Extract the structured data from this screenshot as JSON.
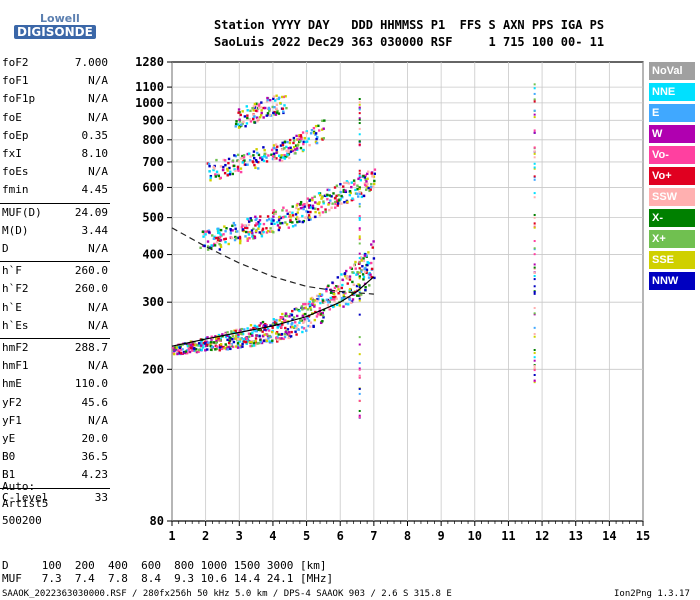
{
  "logo": {
    "top": "Lowell",
    "bottom": "DIGISONDE"
  },
  "header": {
    "line1": "Station YYYY DAY   DDD HHMMSS P1  FFS S AXN PPS IGA PS",
    "line2": "SaoLuis 2022 Dec29 363 030000 RSF     1 715 100 00- 11"
  },
  "params": [
    {
      "name": "foF2",
      "value": "7.000"
    },
    {
      "name": "foF1",
      "value": "N/A"
    },
    {
      "name": "foF1p",
      "value": "N/A"
    },
    {
      "name": "foE",
      "value": "N/A"
    },
    {
      "name": "foEp",
      "value": "0.35"
    },
    {
      "name": "fxI",
      "value": "8.10"
    },
    {
      "name": "foEs",
      "value": "N/A"
    },
    {
      "name": "fmin",
      "value": "4.45"
    },
    {
      "name": "MUF(D)",
      "value": "24.09"
    },
    {
      "name": "M(D)",
      "value": "3.44"
    },
    {
      "name": "D",
      "value": "N/A"
    },
    {
      "name": "h`F",
      "value": "260.0"
    },
    {
      "name": "h`F2",
      "value": "260.0"
    },
    {
      "name": "h`E",
      "value": "N/A"
    },
    {
      "name": "h`Es",
      "value": "N/A"
    },
    {
      "name": "hmF2",
      "value": "288.7"
    },
    {
      "name": "hmF1",
      "value": "N/A"
    },
    {
      "name": "hmE",
      "value": "110.0"
    },
    {
      "name": "yF2",
      "value": "45.6"
    },
    {
      "name": "yF1",
      "value": "N/A"
    },
    {
      "name": "yE",
      "value": "20.0"
    },
    {
      "name": "B0",
      "value": "36.5"
    },
    {
      "name": "B1",
      "value": "4.23"
    },
    {
      "name": "C-level",
      "value": "33"
    }
  ],
  "auto": [
    "Auto:",
    "Artist5",
    "500200"
  ],
  "legend": [
    {
      "label": "NoVal",
      "color": "#a0a0a0"
    },
    {
      "label": "NNE",
      "color": "#00e0ff"
    },
    {
      "label": "E",
      "color": "#40a8ff"
    },
    {
      "label": "W",
      "color": "#b000b0"
    },
    {
      "label": "Vo-",
      "color": "#ff40a0"
    },
    {
      "label": "Vo+",
      "color": "#e00020"
    },
    {
      "label": "SSW",
      "color": "#ffb0b0"
    },
    {
      "label": "X-",
      "color": "#008000"
    },
    {
      "label": "X+",
      "color": "#70c050"
    },
    {
      "label": "SSE",
      "color": "#d0d000"
    },
    {
      "label": "NNW",
      "color": "#0000c0"
    }
  ],
  "bottom": {
    "d_row": "D     100  200  400  600  800 1000 1500 3000 [km]",
    "muf_row": "MUF   7.3  7.4  7.8  8.4  9.3 10.6 14.4 24.1 [MHz]"
  },
  "footer": {
    "left": "SAAOK_2022363030000.RSF / 280fx256h 50 kHz 5.0 km / DPS-4 SAAOK 903 / 2.6 S 315.8 E",
    "right": "Ion2Png 1.3.17"
  },
  "chart_data": {
    "type": "scatter",
    "title": "",
    "xlabel": "",
    "ylabel": "",
    "xlim": [
      1,
      15
    ],
    "ylim": [
      80,
      1280
    ],
    "x_ticks": [
      1,
      2,
      3,
      4,
      5,
      6,
      7,
      8,
      9,
      10,
      11,
      12,
      13,
      14,
      15
    ],
    "y_ticks": [
      80,
      200,
      300,
      400,
      500,
      600,
      700,
      800,
      900,
      1000,
      1100,
      1280
    ],
    "y_scale": "log",
    "grid": true,
    "series": [
      {
        "trace": "F-trace echo",
        "x": [
          1.0,
          1.5,
          2.0,
          2.5,
          3.0,
          3.5,
          4.0,
          4.5,
          5.0,
          5.5,
          6.0,
          6.5,
          7.0
        ],
        "y": [
          225,
          228,
          232,
          236,
          240,
          246,
          252,
          260,
          272,
          290,
          315,
          340,
          380
        ]
      },
      {
        "trace": "2nd hop echo",
        "x": [
          1.8,
          2.5,
          3.0,
          3.5,
          4.0,
          4.5,
          5.0,
          5.5,
          6.0,
          6.5,
          7.0
        ],
        "y": [
          430,
          440,
          455,
          470,
          485,
          500,
          520,
          545,
          570,
          595,
          630
        ]
      },
      {
        "trace": "3rd hop echo",
        "x": [
          2.0,
          2.5,
          3.0,
          3.5,
          4.0,
          4.5,
          5.0,
          5.5
        ],
        "y": [
          660,
          670,
          690,
          710,
          730,
          760,
          800,
          850
        ]
      },
      {
        "trace": "4th hop echo",
        "x": [
          2.8,
          3.2,
          3.6,
          4.0,
          4.4
        ],
        "y": [
          900,
          920,
          950,
          980,
          1000
        ]
      },
      {
        "trace": "profile curve",
        "x": [
          1.0,
          2.0,
          3.0,
          4.0,
          5.0,
          6.0,
          6.5,
          7.0
        ],
        "y": [
          230,
          240,
          250,
          260,
          275,
          300,
          320,
          350
        ]
      },
      {
        "trace": "hmF2 dashed",
        "x": [
          1.0,
          2.0,
          3.0,
          4.0,
          5.0,
          6.0,
          7.0
        ],
        "y": [
          470,
          420,
          380,
          350,
          330,
          320,
          315
        ]
      }
    ]
  }
}
